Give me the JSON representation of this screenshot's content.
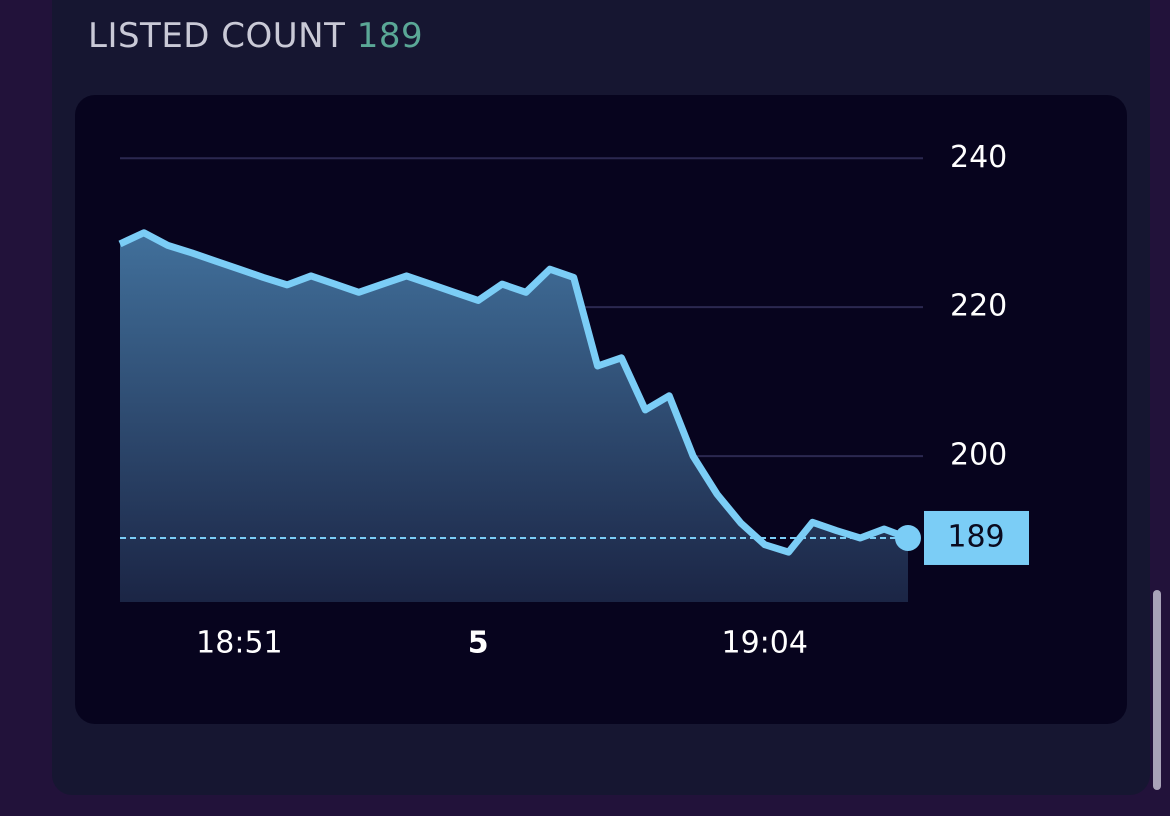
{
  "header": {
    "label": "LISTED COUNT",
    "value": "189"
  },
  "chart_data": {
    "type": "area",
    "categories": [
      null,
      null,
      null,
      null,
      null,
      "18:51",
      null,
      null,
      null,
      null,
      null,
      null,
      null,
      null,
      null,
      "5",
      null,
      null,
      null,
      null,
      null,
      null,
      null,
      null,
      null,
      null,
      null,
      "19:04",
      null,
      null,
      null,
      null,
      null,
      null
    ],
    "values": [
      228.5,
      230,
      228.3,
      227.3,
      226.2,
      225.1,
      224,
      223,
      224.2,
      223.1,
      222,
      223.1,
      224.2,
      223.1,
      222,
      220.9,
      223.1,
      222,
      225.1,
      224,
      212.1,
      213.2,
      206.2,
      208.1,
      200,
      194.9,
      191,
      188.1,
      187.1,
      191.1,
      190,
      189,
      190.2,
      189
    ],
    "color": "#7bcdf6",
    "ylim": [
      180.4,
      243.8
    ],
    "yticks": [
      200,
      220,
      240
    ],
    "grid": true
  }
}
